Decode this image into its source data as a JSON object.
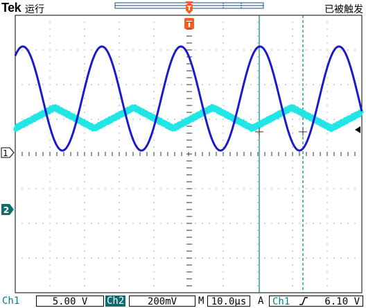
{
  "header": {
    "brand": "Tek",
    "run_state": "运行",
    "trigger_state": "已被触发",
    "trigger_marker": "T"
  },
  "markers": {
    "ch1": "1",
    "ch2": "2"
  },
  "status": {
    "ch1_label": "Ch1",
    "ch1_scale": "5.00 V",
    "ch2_label": "Ch2",
    "ch2_scale": "200mV",
    "time_label": "M",
    "time_scale": "10.0µs",
    "trigger_mode": "A",
    "trigger_source": "Ch1",
    "trigger_slope": "rising-edge-icon",
    "trigger_level": "6.10 V"
  },
  "colors": {
    "ch1": "#1a1acc",
    "ch2": "#22e6e6",
    "cursor": "#008080",
    "trigger": "#ff5a1f"
  }
}
